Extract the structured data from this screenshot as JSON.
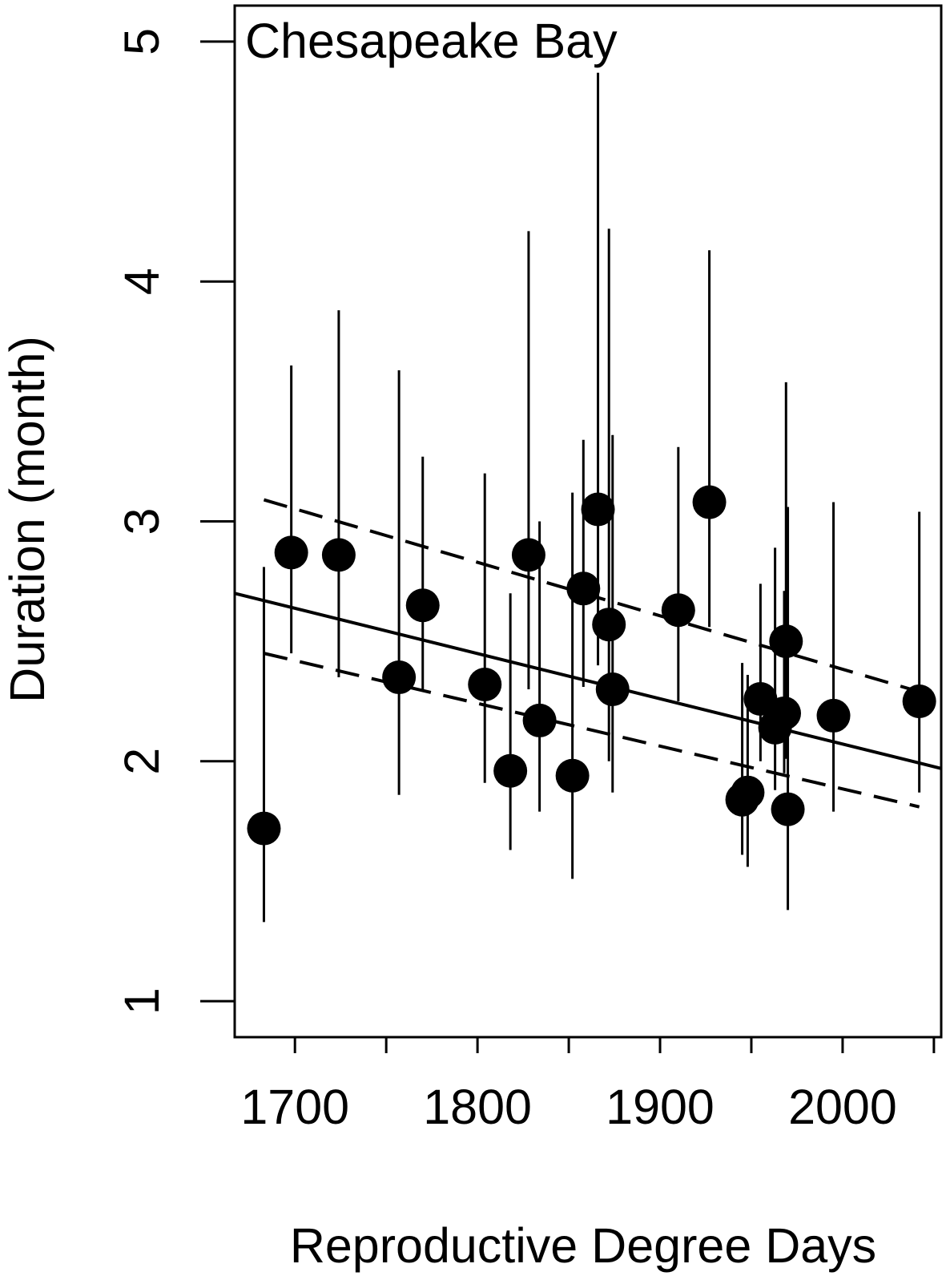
{
  "chart_data": {
    "type": "scatter",
    "title": "Chesapeake Bay",
    "xlabel": "Reproductive Degree Days",
    "ylabel": "Duration (month)",
    "xlim": [
      1667,
      2054
    ],
    "ylim": [
      0.85,
      5.15
    ],
    "x_ticks": [
      1700,
      1750,
      1800,
      1850,
      1900,
      1950,
      2000,
      2050
    ],
    "x_tick_labels": [
      {
        "value": 1700,
        "label": "1700"
      },
      {
        "value": 1800,
        "label": "1800"
      },
      {
        "value": 1900,
        "label": "1900"
      },
      {
        "value": 2000,
        "label": "2000"
      }
    ],
    "y_ticks": [
      {
        "value": 1,
        "label": "1"
      },
      {
        "value": 2,
        "label": "2"
      },
      {
        "value": 3,
        "label": "3"
      },
      {
        "value": 4,
        "label": "4"
      },
      {
        "value": 5,
        "label": "5"
      }
    ],
    "grid": false,
    "points": [
      {
        "x": 1683,
        "y": 1.72,
        "lo": 1.33,
        "hi": 2.81
      },
      {
        "x": 1698,
        "y": 2.87,
        "lo": 2.45,
        "hi": 3.65
      },
      {
        "x": 1724,
        "y": 2.86,
        "lo": 2.35,
        "hi": 3.88
      },
      {
        "x": 1757,
        "y": 2.35,
        "lo": 1.86,
        "hi": 3.63
      },
      {
        "x": 1770,
        "y": 2.65,
        "lo": 2.29,
        "hi": 3.27
      },
      {
        "x": 1804,
        "y": 2.32,
        "lo": 1.91,
        "hi": 3.2
      },
      {
        "x": 1818,
        "y": 1.96,
        "lo": 1.63,
        "hi": 2.7
      },
      {
        "x": 1828,
        "y": 2.86,
        "lo": 2.3,
        "hi": 4.21
      },
      {
        "x": 1834,
        "y": 2.17,
        "lo": 1.79,
        "hi": 3.0
      },
      {
        "x": 1852,
        "y": 1.94,
        "lo": 1.51,
        "hi": 3.12
      },
      {
        "x": 1858,
        "y": 2.72,
        "lo": 2.31,
        "hi": 3.34
      },
      {
        "x": 1866,
        "y": 3.05,
        "lo": 2.4,
        "hi": 4.87
      },
      {
        "x": 1872,
        "y": 2.57,
        "lo": 2.0,
        "hi": 4.22
      },
      {
        "x": 1874,
        "y": 2.3,
        "lo": 1.87,
        "hi": 3.36
      },
      {
        "x": 1910,
        "y": 2.63,
        "lo": 2.25,
        "hi": 3.31
      },
      {
        "x": 1927,
        "y": 3.08,
        "lo": 2.56,
        "hi": 4.13
      },
      {
        "x": 1945,
        "y": 1.84,
        "lo": 1.61,
        "hi": 2.41
      },
      {
        "x": 1948,
        "y": 1.87,
        "lo": 1.56,
        "hi": 2.36
      },
      {
        "x": 1955,
        "y": 2.26,
        "lo": 2.0,
        "hi": 2.74
      },
      {
        "x": 1963,
        "y": 2.14,
        "lo": 1.88,
        "hi": 2.89
      },
      {
        "x": 1968,
        "y": 2.2,
        "lo": 1.95,
        "hi": 2.71
      },
      {
        "x": 1969,
        "y": 2.5,
        "lo": 2.01,
        "hi": 3.58
      },
      {
        "x": 1970,
        "y": 1.8,
        "lo": 1.38,
        "hi": 3.06
      },
      {
        "x": 1995,
        "y": 2.19,
        "lo": 1.79,
        "hi": 3.08
      },
      {
        "x": 2042,
        "y": 2.25,
        "lo": 1.87,
        "hi": 3.04
      }
    ],
    "fit_line": {
      "x": [
        1667,
        2054
      ],
      "y": [
        2.7,
        1.97
      ]
    },
    "ci_upper": {
      "x": [
        1683,
        2042
      ],
      "y": [
        3.09,
        2.29
      ]
    },
    "ci_lower": {
      "x": [
        1683,
        2042
      ],
      "y": [
        2.45,
        1.81
      ]
    }
  }
}
